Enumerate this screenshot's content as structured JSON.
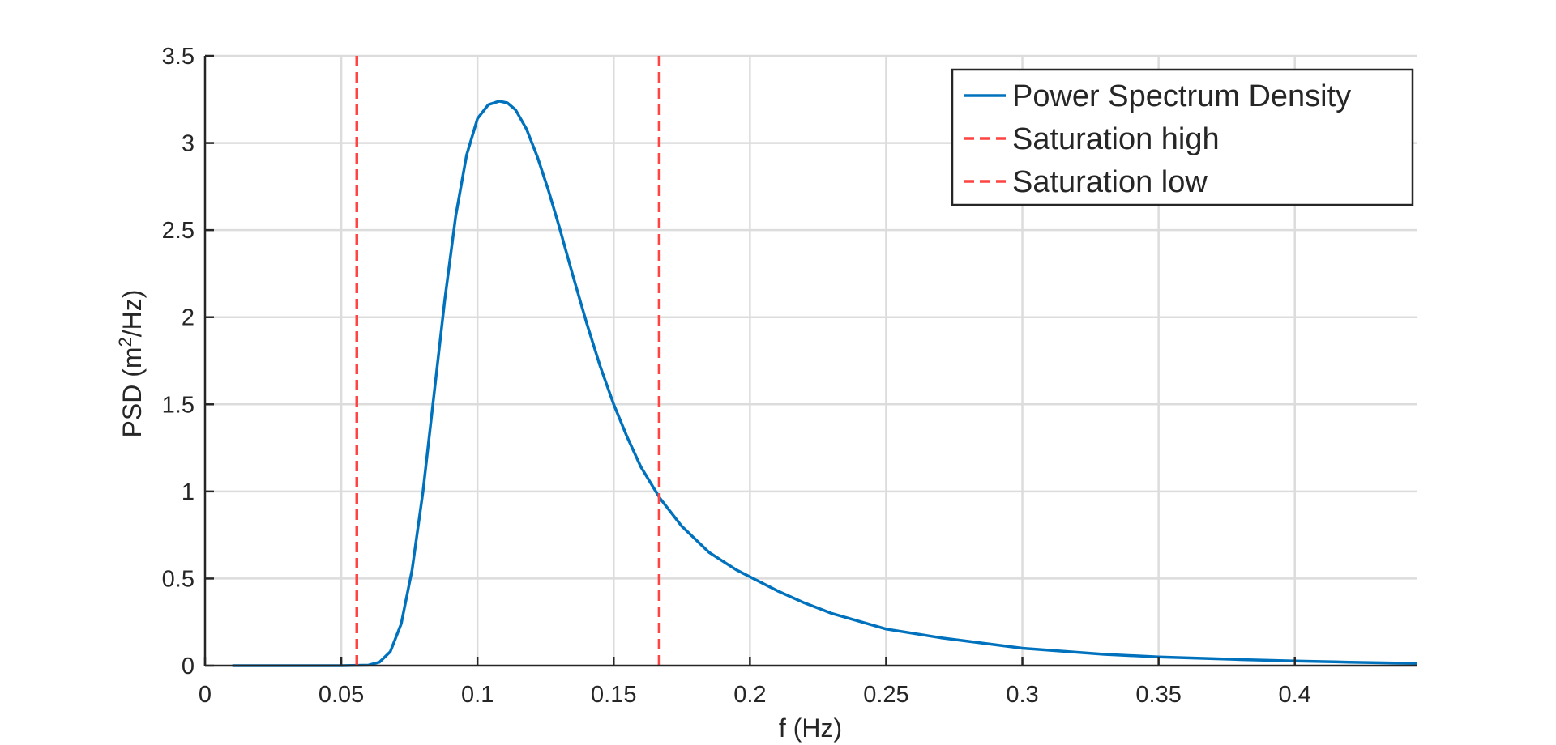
{
  "chart_data": {
    "type": "line",
    "title": "",
    "xlabel": "f (Hz)",
    "ylabel": {
      "main": "PSD (m",
      "sup": "2",
      "tail": "/Hz)"
    },
    "xlim": [
      0,
      0.445
    ],
    "ylim": [
      0,
      3.5
    ],
    "xticks": [
      0,
      0.05,
      0.1,
      0.15,
      0.2,
      0.25,
      0.3,
      0.35,
      0.4
    ],
    "xtick_labels": [
      "0",
      "0.05",
      "0.1",
      "0.15",
      "0.2",
      "0.25",
      "0.3",
      "0.35",
      "0.4"
    ],
    "yticks": [
      0,
      0.5,
      1,
      1.5,
      2,
      2.5,
      3,
      3.5
    ],
    "ytick_labels": [
      "0",
      "0.5",
      "1",
      "1.5",
      "2",
      "2.5",
      "3",
      "3.5"
    ],
    "grid": true,
    "legend_position": "top-right",
    "series": [
      {
        "name": "Power Spectrum Density",
        "color": "#0072BD",
        "style": "solid",
        "x": [
          0.01,
          0.02,
          0.03,
          0.04,
          0.05,
          0.06,
          0.064,
          0.068,
          0.072,
          0.076,
          0.08,
          0.084,
          0.088,
          0.092,
          0.096,
          0.1,
          0.104,
          0.108,
          0.111,
          0.114,
          0.118,
          0.122,
          0.126,
          0.13,
          0.135,
          0.14,
          0.145,
          0.15,
          0.155,
          0.16,
          0.167,
          0.175,
          0.185,
          0.195,
          0.2,
          0.21,
          0.22,
          0.23,
          0.25,
          0.27,
          0.3,
          0.33,
          0.35,
          0.38,
          0.4,
          0.42,
          0.445
        ],
        "y": [
          0,
          0,
          0,
          0,
          0,
          0.003,
          0.02,
          0.08,
          0.24,
          0.55,
          1.0,
          1.55,
          2.1,
          2.58,
          2.93,
          3.14,
          3.22,
          3.24,
          3.23,
          3.19,
          3.08,
          2.92,
          2.73,
          2.52,
          2.24,
          1.97,
          1.72,
          1.5,
          1.31,
          1.14,
          0.96,
          0.8,
          0.65,
          0.55,
          0.51,
          0.43,
          0.36,
          0.3,
          0.21,
          0.16,
          0.1,
          0.065,
          0.05,
          0.035,
          0.027,
          0.02,
          0.013
        ]
      },
      {
        "name": "Saturation high",
        "color": "#FF4444",
        "style": "dashed",
        "x": [
          0.0557,
          0.0557
        ],
        "y": [
          0,
          3.5
        ]
      },
      {
        "name": "Saturation low",
        "color": "#FF4444",
        "style": "dashed",
        "x": [
          0.1667,
          0.1667
        ],
        "y": [
          0,
          3.5
        ]
      }
    ]
  }
}
